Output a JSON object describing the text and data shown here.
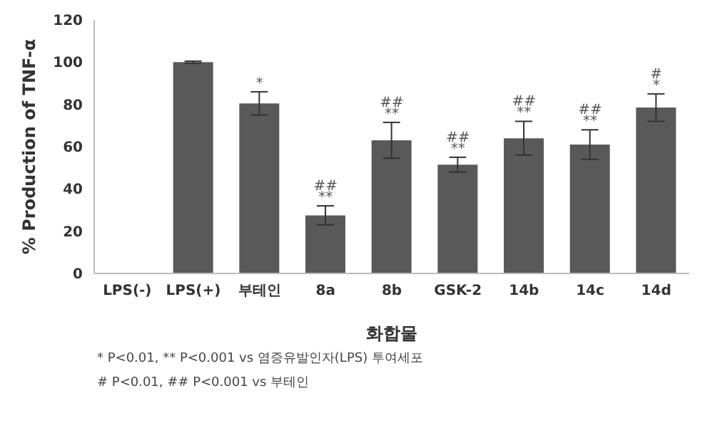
{
  "chart_data": {
    "type": "bar",
    "xlabel": "화합물",
    "ylabel": "% Production of TNF-α",
    "categories": [
      "LPS(-)",
      "LPS(+)",
      "부테인",
      "8a",
      "8b",
      "GSK-2",
      "14b",
      "14c",
      "14d"
    ],
    "values": [
      0,
      100,
      80.5,
      27.5,
      63,
      51.5,
      64,
      61,
      78.5
    ],
    "errors": [
      null,
      0.5,
      5.5,
      4.5,
      8.5,
      3.5,
      8,
      7,
      6.5
    ],
    "color": "#595959",
    "ylim": [
      0,
      120
    ],
    "yticks": [
      0,
      20,
      40,
      60,
      80,
      100,
      120
    ],
    "grid": false,
    "annotations": [
      {
        "text": "*",
        "x": "부테인",
        "y": 86
      },
      {
        "text": "**",
        "x": "8a",
        "y": 32
      },
      {
        "text": "##",
        "x": "8a",
        "y": 32
      },
      {
        "text": "**",
        "x": "8b",
        "y": 71.5
      },
      {
        "text": "##",
        "x": "8b",
        "y": 71.5
      },
      {
        "text": "**",
        "x": "GSK-2",
        "y": 55
      },
      {
        "text": "##",
        "x": "GSK-2",
        "y": 55
      },
      {
        "text": "**",
        "x": "14b",
        "y": 72
      },
      {
        "text": "##",
        "x": "14b",
        "y": 72
      },
      {
        "text": "**",
        "x": "14c",
        "y": 68
      },
      {
        "text": "##",
        "x": "14c",
        "y": 68
      },
      {
        "text": "*",
        "x": "14d",
        "y": 85
      },
      {
        "text": "#",
        "x": "14d",
        "y": 85
      },
      "* P<0.01, ** P<0.001 vs 염증유발인자(LPS) 투여세포",
      "# P<0.01, ## P<0.001 vs 부테인"
    ]
  }
}
